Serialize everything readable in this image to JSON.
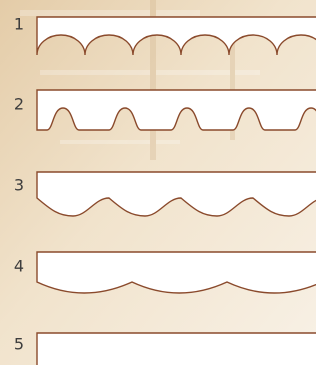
{
  "items": [
    {
      "label": "1"
    },
    {
      "label": "2"
    },
    {
      "label": "3"
    },
    {
      "label": "4"
    },
    {
      "label": "5"
    }
  ]
}
